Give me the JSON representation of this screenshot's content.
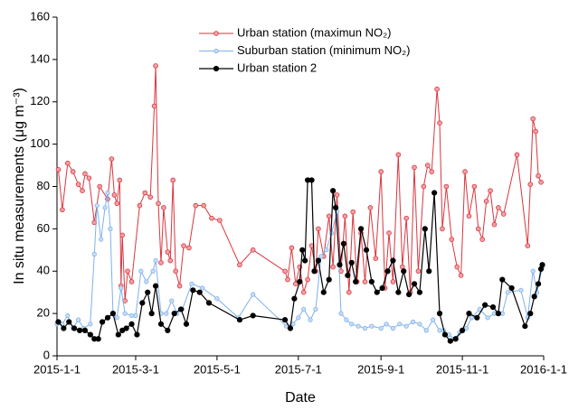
{
  "chart_data": {
    "type": "line",
    "xlabel": "Date",
    "ylabel": "In situ measurements (μg m⁻³)",
    "xlim": [
      "2015-1-1",
      "2016-1-1"
    ],
    "xticks": [
      "2015-1-1",
      "2015-3-1",
      "2015-5-1",
      "2015-7-1",
      "2015-9-1",
      "2015-11-1",
      "2016-1-1"
    ],
    "ylim": [
      0,
      160
    ],
    "yticks": [
      0,
      20,
      40,
      60,
      80,
      100,
      120,
      140,
      160
    ],
    "legend": "upper center",
    "series": [
      {
        "name": "Urban station (maximun NO₂)",
        "color": "#d9363e",
        "x": [
          "2015-1-2",
          "2015-1-5",
          "2015-1-9",
          "2015-1-13",
          "2015-1-17",
          "2015-1-20",
          "2015-1-22",
          "2015-1-25",
          "2015-1-29",
          "2015-2-2",
          "2015-2-8",
          "2015-2-11",
          "2015-2-13",
          "2015-2-15",
          "2015-2-17",
          "2015-2-18",
          "2015-2-19",
          "2015-2-21",
          "2015-2-23",
          "2015-2-26",
          "2015-3-4",
          "2015-3-8",
          "2015-3-12",
          "2015-3-15",
          "2015-3-16",
          "2015-3-18",
          "2015-3-20",
          "2015-3-22",
          "2015-3-25",
          "2015-3-27",
          "2015-3-29",
          "2015-3-31",
          "2015-4-3",
          "2015-4-6",
          "2015-4-10",
          "2015-4-15",
          "2015-4-21",
          "2015-4-27",
          "2015-5-3",
          "2015-5-18",
          "2015-5-28",
          "2015-6-21",
          "2015-6-23",
          "2015-6-26",
          "2015-6-29",
          "2015-7-2",
          "2015-7-5",
          "2015-7-8",
          "2015-7-11",
          "2015-7-14",
          "2015-7-16",
          "2015-7-20",
          "2015-7-24",
          "2015-7-27",
          "2015-7-30",
          "2015-8-2",
          "2015-8-5",
          "2015-8-8",
          "2015-8-11",
          "2015-8-14",
          "2015-8-17",
          "2015-8-20",
          "2015-8-24",
          "2015-8-28",
          "2015-9-1",
          "2015-9-4",
          "2015-9-7",
          "2015-9-10",
          "2015-9-14",
          "2015-9-17",
          "2015-9-20",
          "2015-9-23",
          "2015-9-26",
          "2015-9-29",
          "2015-10-3",
          "2015-10-6",
          "2015-10-9",
          "2015-10-13",
          "2015-10-15",
          "2015-10-17",
          "2015-10-20",
          "2015-10-24",
          "2015-10-28",
          "2015-10-31",
          "2015-11-3",
          "2015-11-6",
          "2015-11-10",
          "2015-11-13",
          "2015-11-16",
          "2015-11-19",
          "2015-11-22",
          "2015-11-25",
          "2015-11-28",
          "2015-12-2",
          "2015-12-12",
          "2015-12-20",
          "2015-12-22",
          "2015-12-24",
          "2015-12-26",
          "2015-12-28",
          "2015-12-30"
        ],
        "values": [
          88,
          69,
          91,
          87,
          81,
          78,
          86,
          84,
          63,
          80,
          74,
          93,
          76,
          72,
          83,
          33,
          57,
          26,
          40,
          35,
          71,
          77,
          75,
          118,
          137,
          72,
          44,
          70,
          49,
          45,
          83,
          40,
          33,
          52,
          51,
          71,
          71,
          65,
          64,
          43,
          50,
          40,
          36,
          51,
          34,
          42,
          30,
          36,
          52,
          40,
          60,
          47,
          66,
          42,
          76,
          40,
          66,
          30,
          68,
          35,
          58,
          35,
          70,
          46,
          87,
          32,
          58,
          35,
          95,
          42,
          65,
          30,
          89,
          40,
          80,
          90,
          87,
          126,
          110,
          60,
          80,
          55,
          42,
          38,
          87,
          66,
          80,
          60,
          55,
          73,
          78,
          62,
          70,
          67,
          95,
          52,
          81,
          112,
          106,
          85,
          82
        ]
      },
      {
        "name": "Suburban station (minimum NO₂)",
        "color": "#7fb2ea",
        "x": [
          "2015-1-1",
          "2015-1-5",
          "2015-1-9",
          "2015-1-13",
          "2015-1-17",
          "2015-1-21",
          "2015-1-26",
          "2015-1-29",
          "2015-1-31",
          "2015-2-3",
          "2015-2-6",
          "2015-2-8",
          "2015-2-10",
          "2015-2-12",
          "2015-2-15",
          "2015-2-18",
          "2015-2-21",
          "2015-2-26",
          "2015-3-1",
          "2015-3-5",
          "2015-3-9",
          "2015-3-14",
          "2015-3-16",
          "2015-3-20",
          "2015-3-24",
          "2015-3-28",
          "2015-4-1",
          "2015-4-5",
          "2015-4-12",
          "2015-4-20",
          "2015-5-1",
          "2015-5-17",
          "2015-5-28",
          "2015-6-22",
          "2015-6-27",
          "2015-7-1",
          "2015-7-5",
          "2015-7-10",
          "2015-7-14",
          "2015-7-18",
          "2015-7-22",
          "2015-7-26",
          "2015-7-30",
          "2015-8-2",
          "2015-8-6",
          "2015-8-10",
          "2015-8-15",
          "2015-8-20",
          "2015-8-25",
          "2015-9-1",
          "2015-9-5",
          "2015-9-10",
          "2015-9-15",
          "2015-9-20",
          "2015-9-25",
          "2015-9-30",
          "2015-10-5",
          "2015-10-10",
          "2015-10-15",
          "2015-10-18",
          "2015-10-22",
          "2015-10-26",
          "2015-10-30",
          "2015-11-4",
          "2015-11-8",
          "2015-11-14",
          "2015-11-20",
          "2015-11-25",
          "2015-12-1",
          "2015-12-5",
          "2015-12-15",
          "2015-12-20",
          "2015-12-24",
          "2015-12-27",
          "2015-12-31"
        ],
        "values": [
          15,
          15,
          19,
          13,
          17,
          13,
          15,
          48,
          71,
          55,
          70,
          77,
          60,
          20,
          18,
          32,
          20,
          19,
          19,
          40,
          35,
          40,
          45,
          20,
          20,
          26,
          20,
          22,
          34,
          32,
          27,
          18,
          29,
          14,
          15,
          18,
          22,
          17,
          22,
          47,
          50,
          58,
          68,
          20,
          17,
          15,
          14,
          13,
          14,
          13,
          15,
          13,
          15,
          14,
          16,
          15,
          12,
          17,
          12,
          12,
          10,
          8,
          11,
          13,
          18,
          22,
          18,
          20,
          20,
          30,
          31,
          18,
          40,
          30,
          42
        ]
      },
      {
        "name": "Urban station 2",
        "color": "#000000",
        "x": [
          "2015-1-2",
          "2015-1-6",
          "2015-1-10",
          "2015-1-14",
          "2015-1-18",
          "2015-1-22",
          "2015-1-26",
          "2015-1-29",
          "2015-2-1",
          "2015-2-4",
          "2015-2-8",
          "2015-2-12",
          "2015-2-16",
          "2015-2-19",
          "2015-2-22",
          "2015-2-26",
          "2015-3-2",
          "2015-3-6",
          "2015-3-10",
          "2015-3-13",
          "2015-3-16",
          "2015-3-20",
          "2015-3-25",
          "2015-3-30",
          "2015-4-4",
          "2015-4-8",
          "2015-4-13",
          "2015-4-18",
          "2015-4-25",
          "2015-5-18",
          "2015-5-28",
          "2015-6-21",
          "2015-6-25",
          "2015-6-28",
          "2015-7-2",
          "2015-7-4",
          "2015-7-6",
          "2015-7-8",
          "2015-7-11",
          "2015-7-13",
          "2015-7-16",
          "2015-7-20",
          "2015-7-24",
          "2015-7-27",
          "2015-7-29",
          "2015-8-1",
          "2015-8-4",
          "2015-8-7",
          "2015-8-10",
          "2015-8-13",
          "2015-8-17",
          "2015-8-21",
          "2015-8-25",
          "2015-8-29",
          "2015-9-2",
          "2015-9-6",
          "2015-9-10",
          "2015-9-14",
          "2015-9-18",
          "2015-9-22",
          "2015-9-26",
          "2015-9-30",
          "2015-10-4",
          "2015-10-7",
          "2015-10-11",
          "2015-10-15",
          "2015-10-19",
          "2015-10-23",
          "2015-10-27",
          "2015-11-1",
          "2015-11-6",
          "2015-11-12",
          "2015-11-18",
          "2015-11-24",
          "2015-11-28",
          "2015-12-1",
          "2015-12-8",
          "2015-12-18",
          "2015-12-22",
          "2015-12-25",
          "2015-12-28",
          "2015-12-30",
          "2015-12-31"
        ],
        "values": [
          16,
          13,
          16,
          13,
          12,
          12,
          10,
          8,
          8,
          16,
          18,
          20,
          10,
          12,
          13,
          15,
          10,
          25,
          30,
          20,
          33,
          15,
          12,
          20,
          22,
          15,
          31,
          30,
          25,
          17,
          19,
          17,
          13,
          27,
          35,
          50,
          45,
          83,
          83,
          40,
          45,
          30,
          36,
          78,
          70,
          43,
          53,
          38,
          44,
          35,
          60,
          50,
          35,
          30,
          32,
          40,
          45,
          30,
          40,
          29,
          34,
          30,
          60,
          40,
          77,
          20,
          10,
          7,
          8,
          12,
          20,
          18,
          24,
          23,
          20,
          36,
          32,
          14,
          20,
          28,
          34,
          41,
          43
        ]
      }
    ]
  }
}
